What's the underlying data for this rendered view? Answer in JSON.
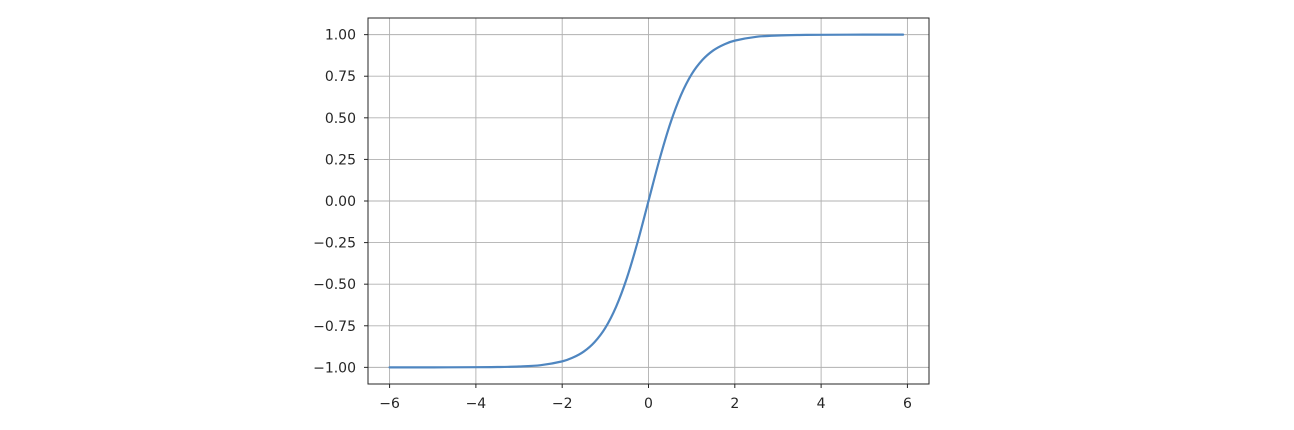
{
  "chart_data": {
    "type": "line",
    "title": "",
    "xlabel": "",
    "ylabel": "",
    "xlim": [
      -6.5,
      6.5
    ],
    "ylim": [
      -1.1,
      1.1
    ],
    "xticks": [
      -6,
      -4,
      -2,
      0,
      2,
      4,
      6
    ],
    "yticks": [
      -1.0,
      -0.75,
      -0.5,
      -0.25,
      0.0,
      0.25,
      0.5,
      0.75,
      1.0
    ],
    "xtick_labels": [
      "−6",
      "−4",
      "−2",
      "0",
      "2",
      "4",
      "6"
    ],
    "ytick_labels": [
      "−1.00",
      "−0.75",
      "−0.50",
      "−0.25",
      "0.00",
      "0.25",
      "0.50",
      "0.75",
      "1.00"
    ],
    "grid": true,
    "legend": "none",
    "series": [
      {
        "color": "#4f86c0",
        "x": [
          -6.0,
          -5.0,
          -4.0,
          -3.5,
          -3.0,
          -2.5,
          -2.0,
          -1.75,
          -1.5,
          -1.25,
          -1.0,
          -0.75,
          -0.5,
          -0.25,
          0.0,
          0.25,
          0.5,
          0.75,
          1.0,
          1.25,
          1.5,
          1.75,
          2.0,
          2.5,
          3.0,
          3.5,
          4.0,
          5.0,
          5.9
        ],
        "y": [
          -1.0,
          -1.0,
          -0.999,
          -0.998,
          -0.995,
          -0.987,
          -0.964,
          -0.941,
          -0.905,
          -0.848,
          -0.762,
          -0.635,
          -0.462,
          -0.245,
          0.0,
          0.245,
          0.462,
          0.635,
          0.762,
          0.848,
          0.905,
          0.941,
          0.964,
          0.987,
          0.995,
          0.998,
          0.999,
          1.0,
          1.0
        ]
      }
    ]
  }
}
